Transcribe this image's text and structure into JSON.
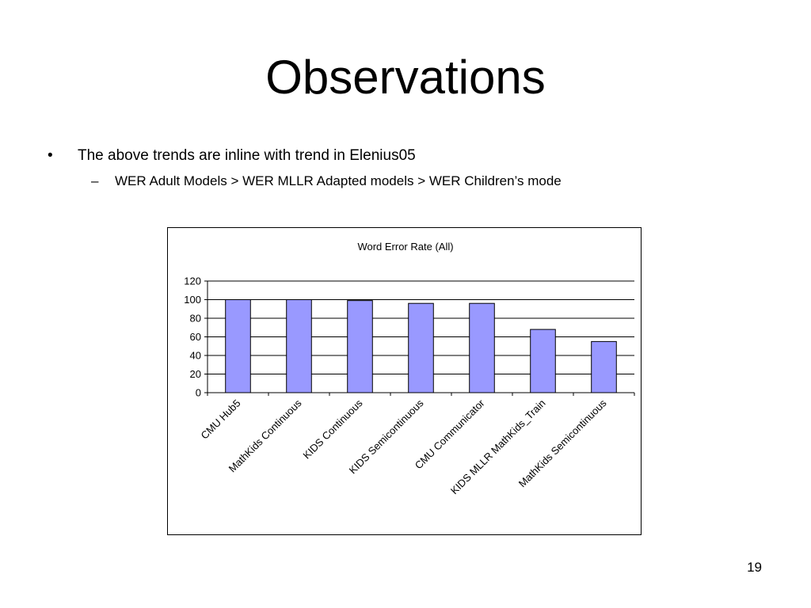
{
  "slide": {
    "title": "Observations",
    "bullet_mark": "•",
    "bullet_text": "The above trends are inline with trend in Elenius05",
    "sub_mark": "–",
    "sub_text": "WER Adult Models >  WER MLLR Adapted models > WER Children’s mode",
    "page_number": "19"
  },
  "chart_data": {
    "type": "bar",
    "title": "Word Error Rate (All)",
    "xlabel": "",
    "ylabel": "",
    "ylim": [
      0,
      120
    ],
    "yticks": [
      0,
      20,
      40,
      60,
      80,
      100,
      120
    ],
    "grid": true,
    "legend": "none",
    "bar_color": "#9999ff",
    "categories": [
      "CMU Hub5",
      "MathKids Continuous",
      "KIDS Continuous",
      "KIDS Semicontinuous",
      "CMU Communicator",
      "KIDS MLLR MathKids_Train",
      "MathKids Semicontinuous"
    ],
    "values": [
      100,
      100,
      99,
      96,
      96,
      68,
      55
    ]
  }
}
